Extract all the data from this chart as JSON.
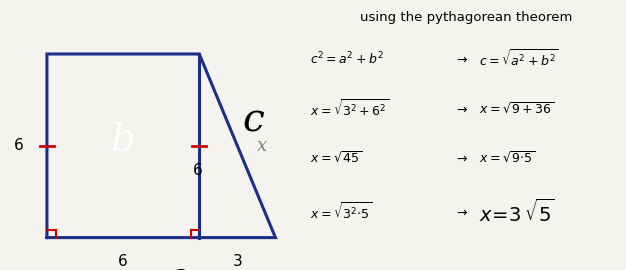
{
  "bg_color": "#f5f3f0",
  "trap_color": "#1a2e8a",
  "trap_lw": 2.2,
  "right_angle_color": "#cc0000",
  "tick_color": "#cc0000",
  "label_b": "b",
  "label_c": "c",
  "label_x": "x",
  "label_a": "a",
  "side_left": "6",
  "side_b": "6",
  "bottom_left": "6",
  "bottom_right": "3",
  "title_text": "using the pythagorean theorem"
}
